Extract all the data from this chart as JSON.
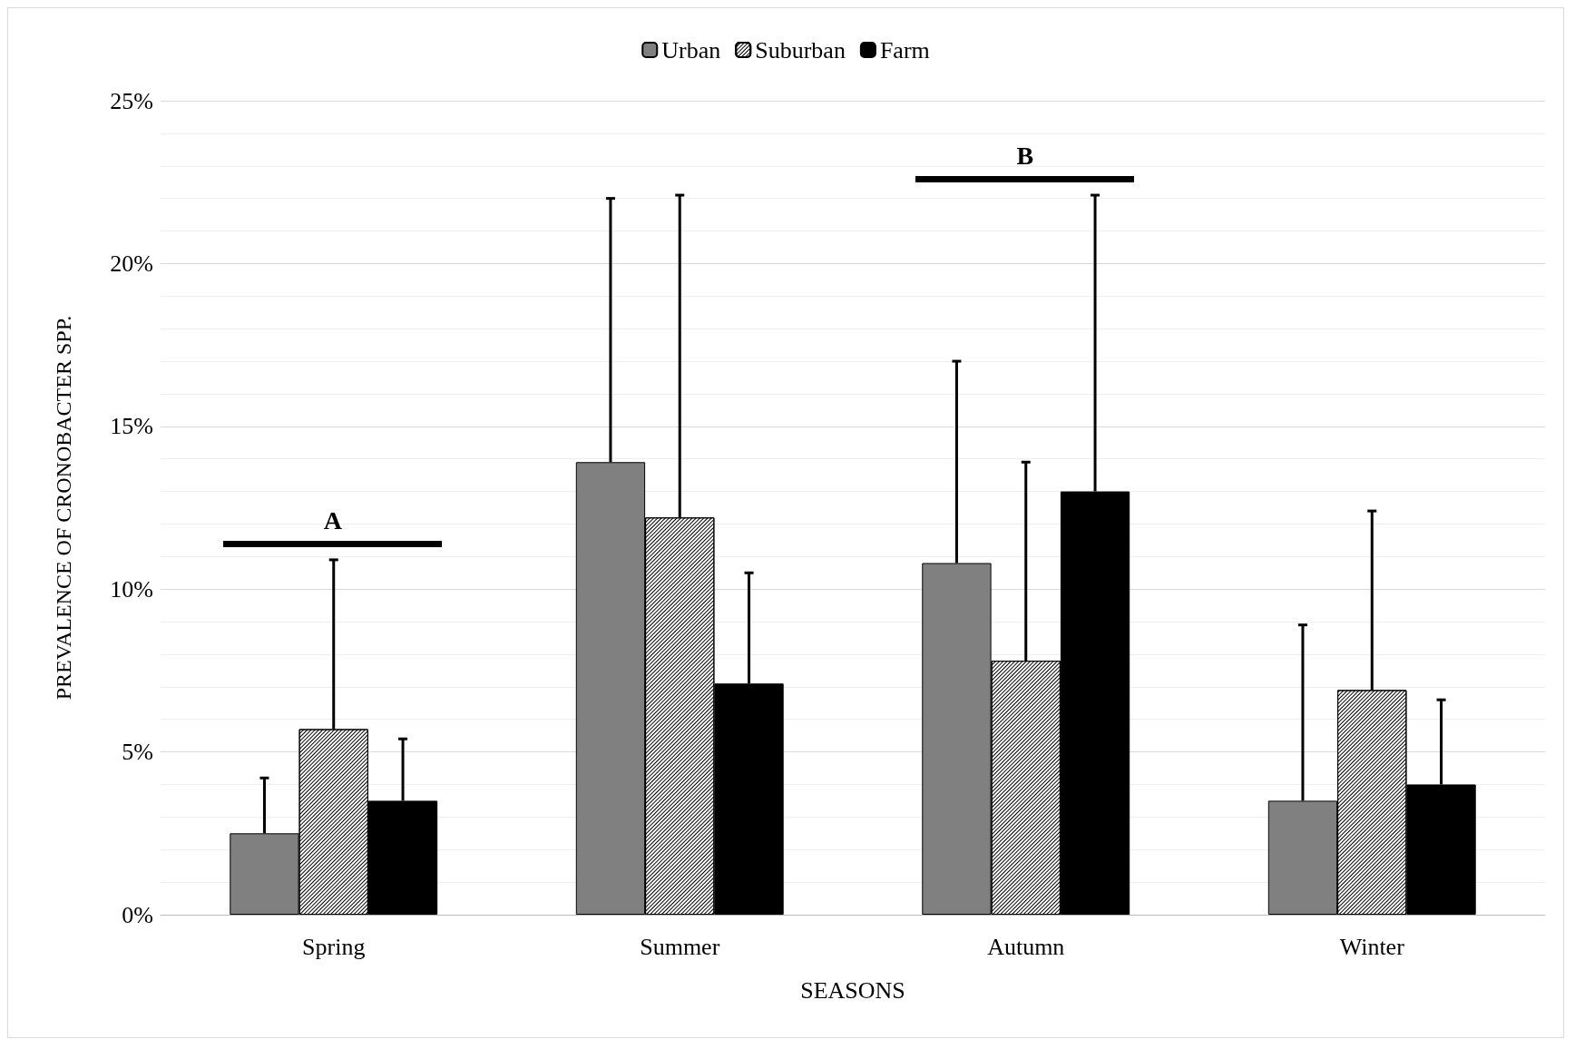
{
  "chart_data": {
    "type": "bar",
    "xlabel": "SEASONS",
    "ylabel": "PREVALENCE OF CRONOBACTER SPP.",
    "categories": [
      "Spring",
      "Summer",
      "Autumn",
      "Winter"
    ],
    "series": [
      {
        "name": "Urban",
        "color": "#808080",
        "values": [
          2.5,
          13.9,
          10.8,
          3.5
        ],
        "errors": [
          [
            2.5,
            4.2
          ],
          [
            13.9,
            22.0
          ],
          [
            10.8,
            17.0
          ],
          [
            3.5,
            8.9
          ]
        ]
      },
      {
        "name": "Suburban",
        "color": "#ffffff",
        "values": [
          5.7,
          12.2,
          7.8,
          6.9
        ],
        "errors": [
          [
            5.7,
            10.9
          ],
          [
            12.2,
            22.1
          ],
          [
            7.8,
            13.9
          ],
          [
            6.9,
            12.4
          ]
        ]
      },
      {
        "name": "Farm",
        "color": "#000000",
        "values": [
          3.5,
          7.1,
          13.0,
          4.0
        ],
        "errors": [
          [
            3.5,
            5.4
          ],
          [
            7.1,
            10.5
          ],
          [
            13.0,
            22.1
          ],
          [
            4.0,
            6.6
          ]
        ]
      }
    ],
    "ylim": [
      0,
      25
    ],
    "yticks": [
      {
        "value": 0,
        "label": "0%"
      },
      {
        "value": 5,
        "label": "5%"
      },
      {
        "value": 10,
        "label": "10%"
      },
      {
        "value": 15,
        "label": "15%"
      },
      {
        "value": 20,
        "label": "20%"
      },
      {
        "value": 25,
        "label": "25%"
      }
    ],
    "annotations": [
      "A",
      "B"
    ],
    "grid": "y",
    "legend": "top"
  }
}
